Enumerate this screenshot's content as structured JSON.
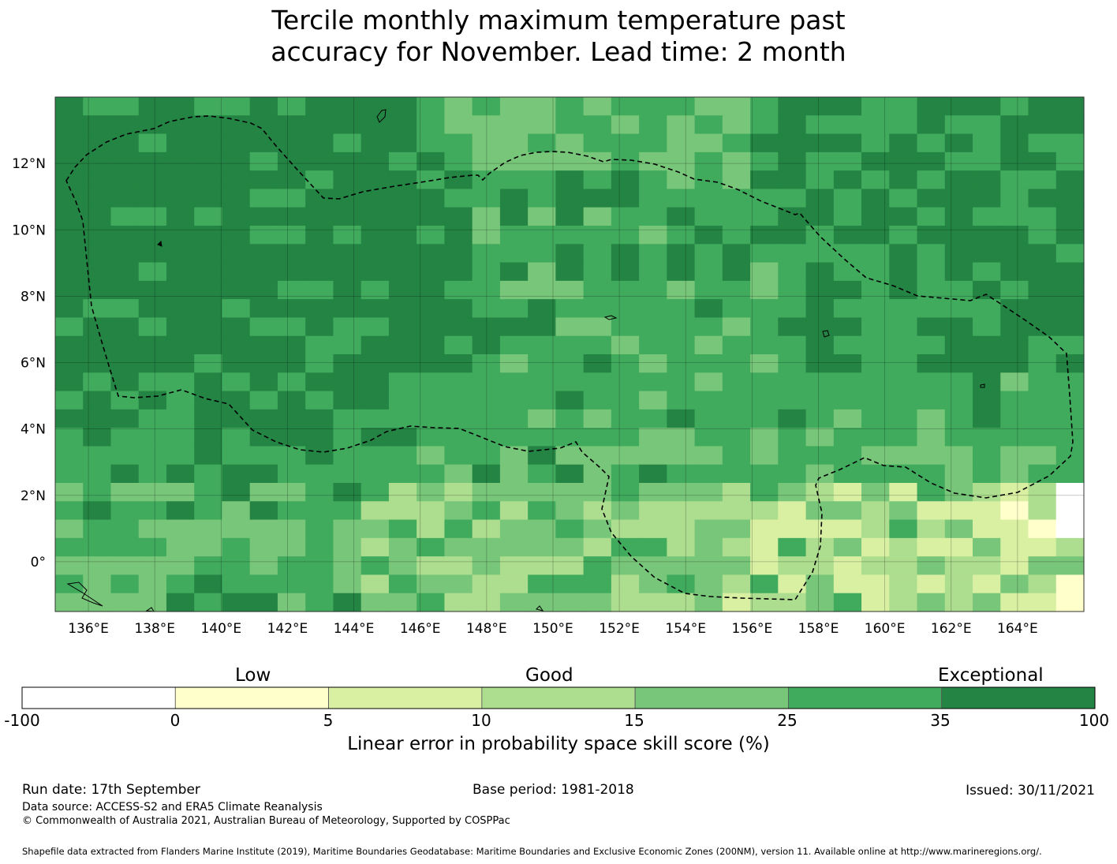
{
  "title": {
    "line1": "Tercile monthly maximum temperature past",
    "line2": "accuracy for November. Lead time: 2 month"
  },
  "map": {
    "lon_ticks": [
      "136°E",
      "138°E",
      "140°E",
      "142°E",
      "144°E",
      "146°E",
      "148°E",
      "150°E",
      "152°E",
      "154°E",
      "156°E",
      "158°E",
      "160°E",
      "162°E",
      "164°E"
    ],
    "lat_ticks": [
      "12°N",
      "10°N",
      "8°N",
      "6°N",
      "4°N",
      "2°N",
      "0°"
    ],
    "lon_range": [
      135,
      166
    ],
    "lat_range": [
      -1.5,
      14
    ],
    "boundary_style": "dashed",
    "ocean_color": "#3ea85a"
  },
  "legend": {
    "categories": {
      "low": "Low",
      "good": "Good",
      "exceptional": "Exceptional"
    },
    "tick_labels": [
      "-100",
      "0",
      "5",
      "10",
      "15",
      "25",
      "35",
      "100"
    ],
    "colors": [
      "#ffffff",
      "#ffffcc",
      "#d9f0a3",
      "#addd8e",
      "#78c679",
      "#41ab5d",
      "#238443"
    ],
    "label": "Linear error in probability space skill score (%)"
  },
  "footer": {
    "run_date": "Run date: 17th September",
    "base_period": "Base period: 1981-2018",
    "issued": "Issued: 30/11/2021",
    "data_source": "Data source: ACCESS-S2 and ERA5 Climate Reanalysis",
    "copyright": "© Commonwealth of Australia 2021, Australian Bureau of Meteorology, Supported by COSPPac",
    "shapefile": "Shapefile data extracted from Flanders Marine Institute (2019), Maritime Boundaries Geodatabase: Maritime Boundaries and Exclusive Economic Zones (200NM), version 11. Available online at http://www.marineregions.org/."
  }
}
